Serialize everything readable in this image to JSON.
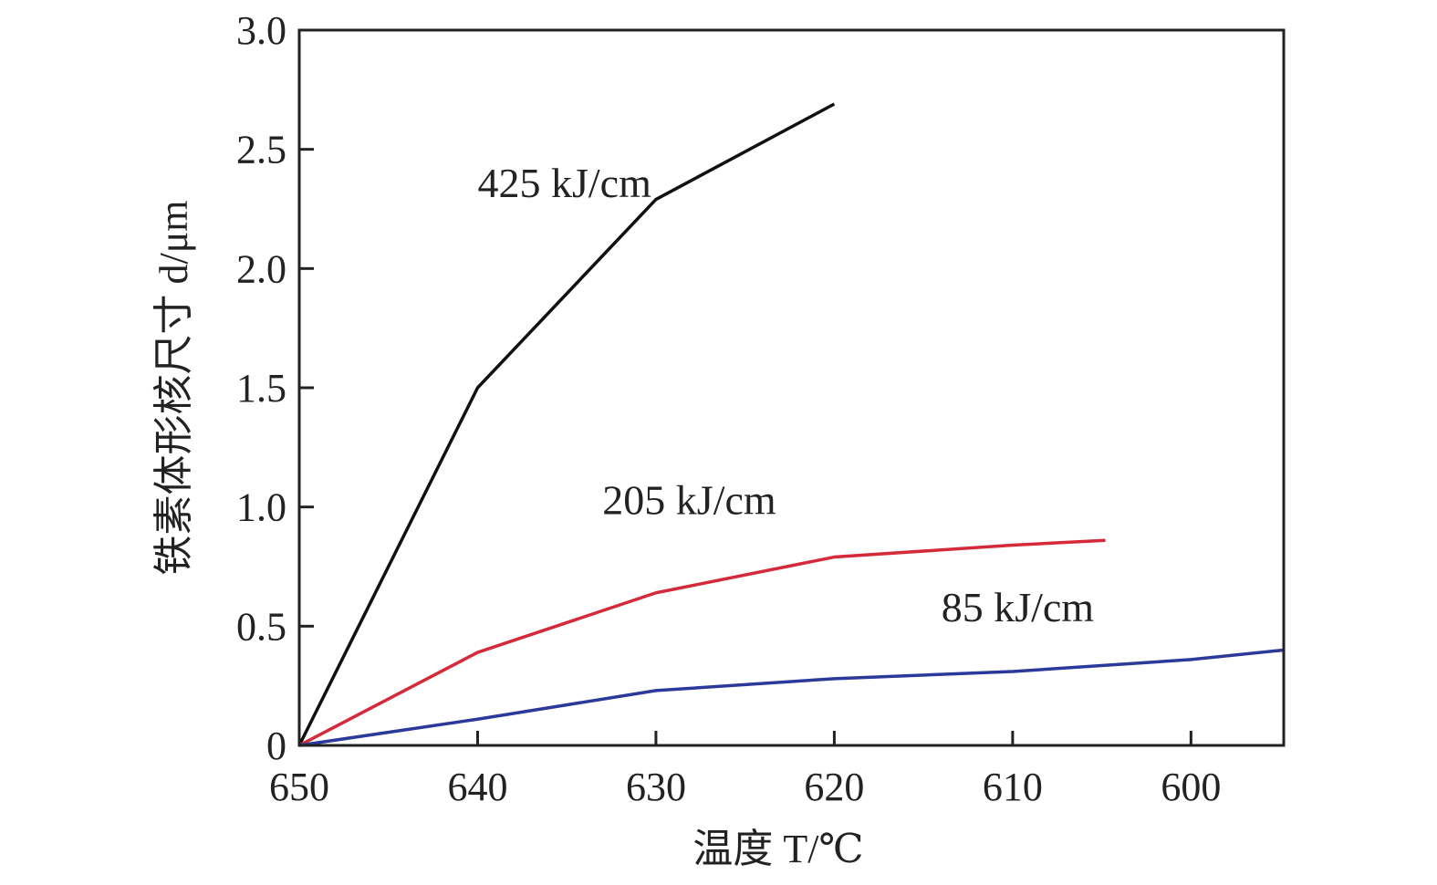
{
  "chart_data": {
    "type": "line",
    "title": "",
    "xlabel": "温度 T/℃",
    "ylabel": "铁素体形核尺寸 d/μm",
    "xlim": [
      650,
      594.8
    ],
    "ylim": [
      0,
      3.0
    ],
    "x_ticks": [
      650,
      640,
      630,
      620,
      610,
      600
    ],
    "x_tick_labels": [
      "650",
      "640",
      "630",
      "620",
      "610",
      "600"
    ],
    "y_ticks": [
      0,
      0.5,
      1.0,
      1.5,
      2.0,
      2.5,
      3.0
    ],
    "y_tick_labels": [
      "0",
      "0.5",
      "1.0",
      "1.5",
      "2.0",
      "2.5",
      "3.0"
    ],
    "grid": false,
    "series": [
      {
        "name": "425 kJ/cm",
        "color": "#111111",
        "label_at": [
          640,
          2.3
        ],
        "x": [
          650,
          640,
          630,
          620
        ],
        "y": [
          0,
          1.5,
          2.29,
          2.69
        ]
      },
      {
        "name": "205 kJ/cm",
        "color": "#d42a3a",
        "label_at": [
          633,
          0.97
        ],
        "x": [
          650,
          640,
          630,
          620,
          610,
          604.8
        ],
        "y": [
          0,
          0.39,
          0.64,
          0.79,
          0.84,
          0.86
        ]
      },
      {
        "name": "85 kJ/cm",
        "color": "#2b3a9a",
        "label_at": [
          614,
          0.52
        ],
        "x": [
          650,
          640,
          630,
          620,
          610,
          600,
          594.8
        ],
        "y": [
          0,
          0.11,
          0.23,
          0.28,
          0.31,
          0.36,
          0.4
        ]
      }
    ]
  }
}
